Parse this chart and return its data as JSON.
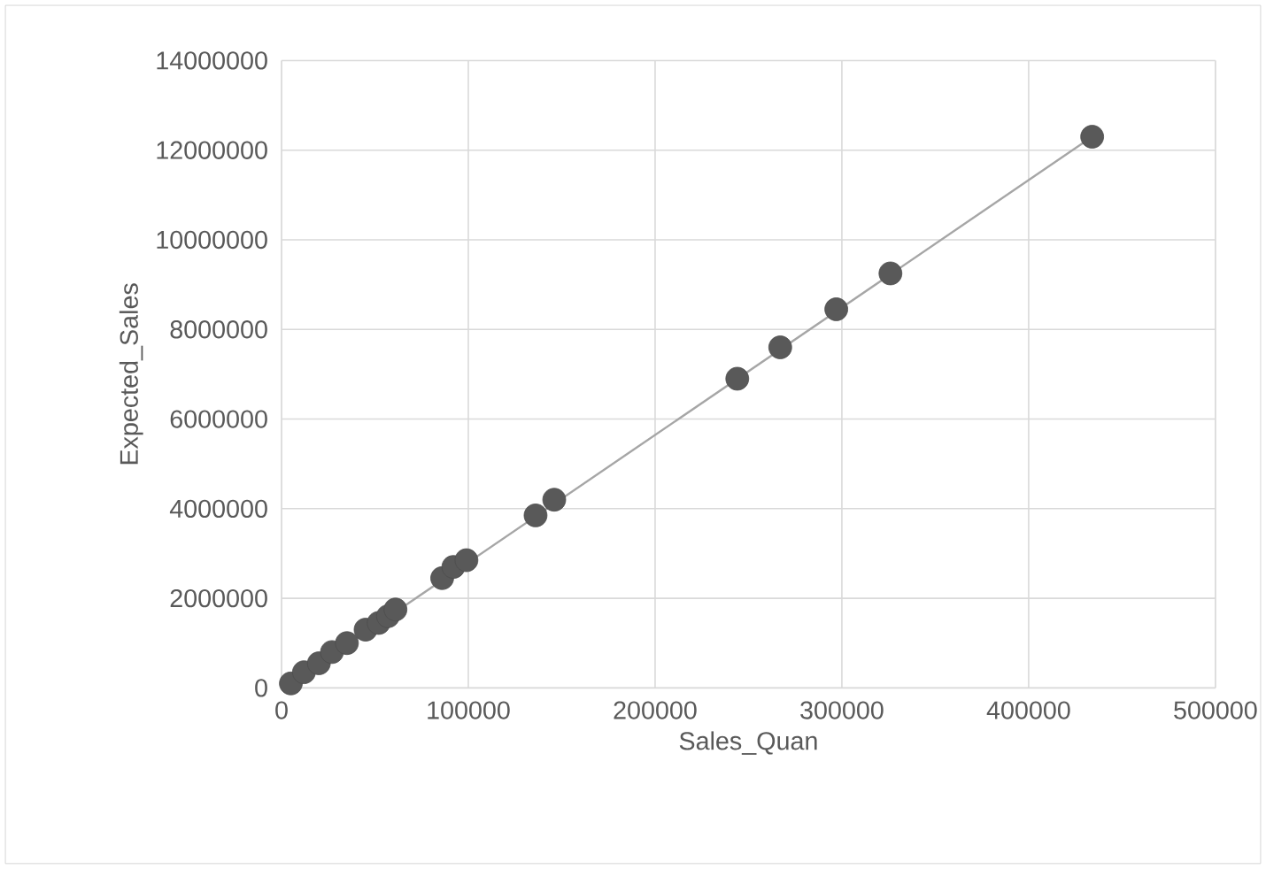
{
  "chart_data": {
    "type": "scatter",
    "xlabel": "Sales_Quan",
    "ylabel": "Expected_Sales",
    "xlim": [
      0,
      500000
    ],
    "xticks": [
      0,
      100000,
      200000,
      300000,
      400000,
      500000
    ],
    "ylim": [
      0,
      14000000
    ],
    "yticks": [
      0,
      2000000,
      4000000,
      6000000,
      8000000,
      10000000,
      12000000,
      14000000
    ],
    "grid": true,
    "series": [
      {
        "marker": "circle",
        "color": "#595959",
        "x": [
          5000,
          12000,
          20000,
          27000,
          35000,
          45000,
          52000,
          57000,
          61000,
          86000,
          92000,
          99000,
          136000,
          146000,
          244000,
          267000,
          297000,
          326000,
          434000
        ],
        "values": [
          100000,
          350000,
          550000,
          800000,
          1000000,
          1300000,
          1450000,
          1600000,
          1750000,
          2450000,
          2700000,
          2850000,
          3850000,
          4200000,
          6900000,
          7600000,
          8450000,
          9250000,
          12300000
        ]
      },
      {
        "type": "line",
        "color": "#a6a6a6",
        "x": [
          5000,
          434000
        ],
        "values": [
          100000,
          12300000
        ]
      }
    ]
  }
}
